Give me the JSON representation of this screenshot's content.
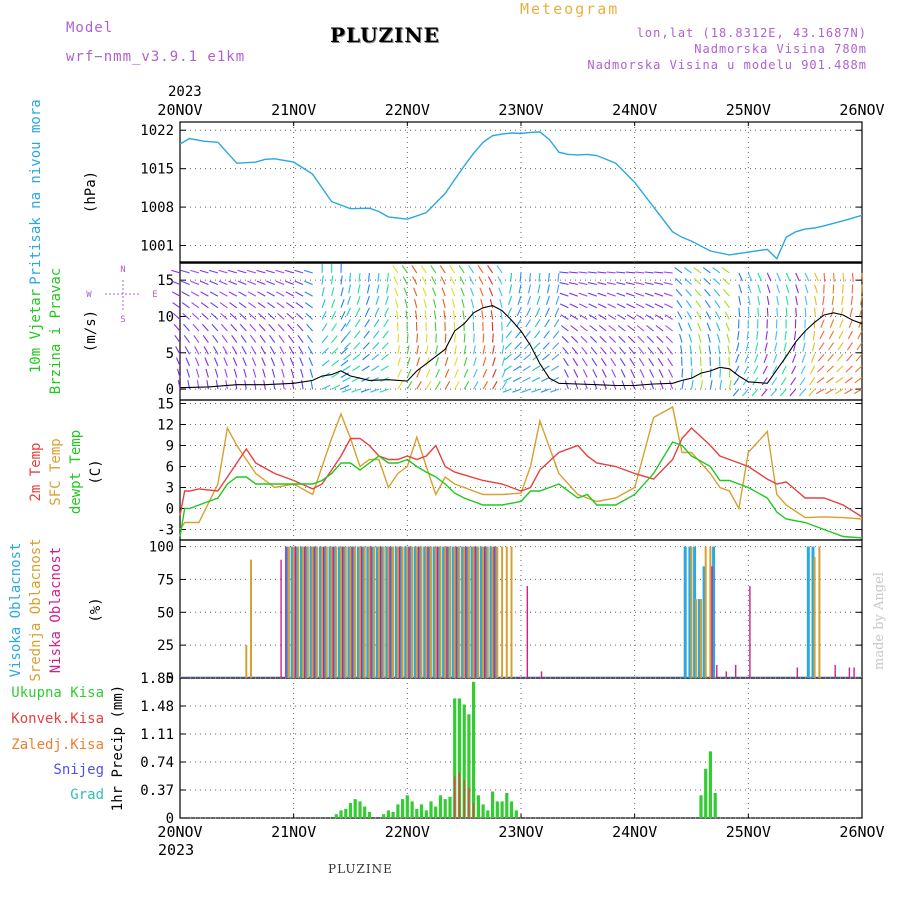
{
  "header": {
    "model_label": "Model",
    "model_name": "wrf−nmm_v3.9.1  e1km",
    "station": "PLUZINE",
    "meteogram_label": "Meteogram",
    "lonlat": "lon,lat (18.8312E, 43.1687N)",
    "altitude": "Nadmorska Visina 780m",
    "model_altitude": "Nadmorska Visina u modelu 901.488m"
  },
  "footer": {
    "station": "PLUZINE",
    "credit": "made by Angel"
  },
  "colors": {
    "pressure": "#2aa8e0",
    "temp2m": "#e84040",
    "sfc": "#d8a030",
    "dew": "#20c820",
    "high_cloud": "#2aa8e0",
    "mid_cloud": "#d8a030",
    "low_cloud": "#d02090",
    "precip": "#33cc33",
    "label_purple": "#b060d0"
  },
  "chart_data": [
    {
      "type": "line",
      "panel": "pressure",
      "ylabel_left": "Pritisak na nivou mora",
      "ylabel_unit": "(hPa)",
      "x_ticks": [
        "20NOV",
        "21NOV",
        "22NOV",
        "23NOV",
        "24NOV",
        "25NOV",
        "26NOV"
      ],
      "x_year": "2023",
      "xlim": [
        0,
        144
      ],
      "yticks": [
        1001,
        1008,
        1015,
        1022
      ],
      "ylim": [
        998,
        1023.5
      ],
      "series": [
        {
          "x": [
            0,
            2,
            5,
            8,
            12,
            16,
            18,
            20,
            24,
            28,
            32,
            36,
            40,
            42,
            44,
            46,
            48,
            52,
            56,
            58,
            60,
            62,
            64,
            66,
            68,
            70,
            72,
            74,
            76,
            78,
            80,
            82,
            84,
            86,
            88,
            92,
            96,
            100,
            104,
            106,
            108,
            112,
            116,
            120,
            124,
            126,
            128,
            130,
            132,
            134,
            136,
            140,
            144
          ],
          "values": [
            1019.5,
            1020.5,
            1020,
            1019.8,
            1016,
            1016.2,
            1016.7,
            1016.8,
            1016.2,
            1014,
            1009,
            1007.7,
            1007.8,
            1007.2,
            1006.2,
            1006,
            1005.8,
            1007,
            1010.5,
            1013,
            1015.5,
            1017.8,
            1019.8,
            1021,
            1021.3,
            1021.5,
            1021.4,
            1021.6,
            1021.7,
            1020.3,
            1018,
            1017.6,
            1017.5,
            1017.6,
            1017.4,
            1016,
            1012.5,
            1008,
            1003.5,
            1002.5,
            1001.8,
            1000,
            999.3,
            999.8,
            1000.3,
            998.6,
            1002.5,
            1003.5,
            1004,
            1004.2,
            1004.6,
            1005.5,
            1006.5
          ]
        }
      ]
    },
    {
      "type": "line",
      "panel": "wind",
      "ylabel_left_1": "10m Vjetar",
      "ylabel_left_2": "Brzina i Pravac",
      "ylabel_unit": "(m/s)",
      "compass_labels": [
        "N",
        "W",
        "E",
        "S"
      ],
      "yticks": [
        0,
        5,
        10,
        15
      ],
      "ylim": [
        -1.5,
        17.5
      ],
      "series": [
        {
          "name": "",
          "x": [
            0,
            6,
            12,
            18,
            24,
            28,
            30,
            32,
            34,
            36,
            38,
            40,
            44,
            48,
            50,
            52,
            54,
            56,
            58,
            60,
            62,
            64,
            66,
            68,
            70,
            72,
            74,
            76,
            78,
            80,
            84,
            88,
            92,
            96,
            100,
            104,
            106,
            108,
            110,
            112,
            114,
            116,
            118,
            120,
            124,
            128,
            130,
            132,
            134,
            136,
            138,
            140,
            142,
            144
          ],
          "values": [
            0.2,
            0.3,
            0.6,
            0.6,
            0.8,
            1.2,
            1.8,
            2,
            2.5,
            1.8,
            1.5,
            1.2,
            1.3,
            1.1,
            2.5,
            3.5,
            4.5,
            5.5,
            8,
            9,
            10.5,
            11.2,
            11.5,
            10.8,
            9.5,
            8,
            6,
            3.5,
            1.5,
            0.8,
            0.7,
            0.6,
            0.5,
            0.5,
            0.7,
            0.8,
            1.2,
            1.5,
            2.2,
            2.5,
            3,
            2.8,
            1.8,
            1,
            0.8,
            4.5,
            6.5,
            8,
            9.2,
            10.2,
            10.5,
            10.2,
            9.5,
            9
          ]
        }
      ]
    },
    {
      "type": "line",
      "panel": "temperature",
      "ylabel_left_1": "2m Temp",
      "ylabel_left_2": "SFC Temp",
      "ylabel_left_3": "dewpt Temp",
      "ylabel_unit": "(C)",
      "yticks": [
        -3,
        0,
        3,
        6,
        9,
        12,
        15
      ],
      "ylim": [
        -4.5,
        15.5
      ],
      "series": [
        {
          "name": "2m Temp",
          "x": [
            0,
            1,
            2,
            4,
            8,
            10,
            12,
            14,
            16,
            20,
            24,
            28,
            30,
            32,
            34,
            36,
            38,
            40,
            42,
            44,
            46,
            48,
            50,
            52,
            54,
            56,
            58,
            60,
            64,
            68,
            72,
            74,
            76,
            80,
            84,
            86,
            88,
            92,
            96,
            100,
            104,
            106,
            108,
            112,
            114,
            116,
            118,
            120,
            124,
            126,
            128,
            132,
            136,
            140,
            144
          ],
          "values": [
            -1,
            2.5,
            2.5,
            2.8,
            2.5,
            4.5,
            6.5,
            8.5,
            6.5,
            5,
            4,
            2.8,
            3.5,
            5.5,
            7.5,
            10,
            10,
            9,
            7.5,
            7,
            7,
            7.5,
            7,
            7.5,
            9,
            6,
            5.2,
            4.8,
            4,
            3.5,
            2.5,
            3,
            5.5,
            8,
            9,
            7.5,
            6.5,
            6,
            5,
            4.2,
            7,
            10,
            11.5,
            9,
            7.5,
            7,
            6.5,
            6,
            4.2,
            3.5,
            3.8,
            1.5,
            1.5,
            0.5,
            -1.2
          ]
        },
        {
          "name": "SFC Temp",
          "x": [
            0,
            1,
            2,
            4,
            8,
            10,
            12,
            14,
            16,
            20,
            24,
            28,
            30,
            32,
            34,
            36,
            38,
            40,
            42,
            44,
            46,
            48,
            50,
            52,
            54,
            56,
            58,
            60,
            64,
            68,
            72,
            74,
            76,
            80,
            84,
            86,
            88,
            92,
            96,
            100,
            104,
            106,
            108,
            112,
            114,
            116,
            118,
            120,
            124,
            126,
            128,
            132,
            136,
            140,
            144
          ],
          "values": [
            -3,
            -2,
            -2,
            -2,
            3.5,
            11.5,
            9,
            7,
            5,
            3,
            3.5,
            2,
            6,
            10,
            13.5,
            10,
            6,
            7,
            7,
            3,
            5,
            6,
            10.2,
            6,
            2,
            4.5,
            3.5,
            3,
            2,
            2,
            2.2,
            6,
            12.5,
            5,
            2,
            1.5,
            1,
            1.5,
            3,
            13,
            14.5,
            8,
            8,
            5,
            3,
            2.5,
            0,
            8,
            11,
            2,
            0.5,
            -1.3,
            -1.2,
            -1.3,
            -1.5
          ]
        },
        {
          "name": "dewpt Temp",
          "x": [
            0,
            1,
            2,
            4,
            8,
            10,
            12,
            14,
            16,
            20,
            24,
            28,
            30,
            32,
            34,
            36,
            38,
            40,
            42,
            44,
            46,
            48,
            50,
            52,
            54,
            56,
            58,
            60,
            64,
            68,
            72,
            74,
            76,
            80,
            84,
            86,
            88,
            92,
            96,
            100,
            104,
            106,
            108,
            112,
            114,
            116,
            118,
            120,
            124,
            126,
            128,
            132,
            136,
            140,
            144
          ],
          "values": [
            -4,
            0,
            0,
            0.5,
            1.5,
            3.5,
            4.5,
            4.5,
            3.5,
            3.5,
            3.5,
            3.5,
            4,
            5,
            6.5,
            6.5,
            5.5,
            6.5,
            7.5,
            6.5,
            6.5,
            7,
            6,
            5.2,
            4.5,
            3.5,
            2.2,
            1.5,
            0.5,
            0.5,
            1,
            2.5,
            2.5,
            3.5,
            1.5,
            2,
            0.5,
            0.5,
            2,
            5,
            9.5,
            9,
            7.5,
            6,
            4,
            4,
            3.5,
            3,
            1.5,
            -0.5,
            -1.5,
            -2,
            -3,
            -4,
            -4.2
          ]
        }
      ]
    },
    {
      "type": "bar",
      "panel": "clouds",
      "ylabel_left_1": "Visoka Oblacnost",
      "ylabel_left_2": "Srednja Oblacnost",
      "ylabel_left_3": "Niska Oblacnost",
      "ylabel_unit": "(%)",
      "yticks": [
        0,
        25,
        50,
        75,
        100
      ],
      "ylim": [
        0,
        105
      ],
      "series": [
        {
          "name": "Visoka Oblacnost",
          "x": [
            23,
            24,
            25,
            26,
            27,
            28,
            29,
            30,
            31,
            32,
            33,
            34,
            35,
            36,
            37,
            38,
            39,
            40,
            41,
            42,
            43,
            44,
            45,
            46,
            47,
            48,
            49,
            50,
            51,
            52,
            53,
            54,
            55,
            56,
            57,
            58,
            59,
            60,
            61,
            62,
            63,
            64,
            65,
            66,
            67,
            107,
            108,
            109,
            110,
            111,
            113,
            133,
            134
          ],
          "values": [
            100,
            100,
            100,
            100,
            100,
            100,
            100,
            100,
            100,
            100,
            100,
            100,
            100,
            100,
            100,
            100,
            100,
            100,
            100,
            100,
            100,
            100,
            100,
            100,
            100,
            100,
            100,
            100,
            100,
            100,
            100,
            100,
            100,
            100,
            100,
            100,
            100,
            100,
            100,
            100,
            100,
            100,
            100,
            100,
            100,
            100,
            100,
            100,
            60,
            85,
            100,
            100,
            100
          ]
        },
        {
          "name": "Srednja Oblacnost",
          "x": [
            14,
            15,
            23,
            24,
            25,
            26,
            27,
            28,
            29,
            30,
            31,
            32,
            33,
            34,
            35,
            36,
            37,
            38,
            39,
            40,
            41,
            42,
            43,
            44,
            45,
            46,
            47,
            48,
            49,
            50,
            51,
            52,
            53,
            54,
            55,
            56,
            57,
            58,
            59,
            60,
            61,
            62,
            63,
            64,
            65,
            66,
            67,
            68,
            69,
            70,
            108,
            109,
            110,
            111,
            112,
            134,
            135
          ],
          "values": [
            25,
            90,
            100,
            100,
            100,
            100,
            100,
            100,
            100,
            100,
            100,
            100,
            100,
            100,
            100,
            100,
            100,
            100,
            100,
            100,
            100,
            100,
            100,
            100,
            100,
            100,
            100,
            100,
            100,
            100,
            100,
            100,
            100,
            100,
            100,
            100,
            100,
            100,
            100,
            100,
            100,
            100,
            100,
            100,
            100,
            100,
            100,
            100,
            100,
            100,
            100,
            60,
            60,
            100,
            100,
            92,
            100
          ]
        },
        {
          "name": "Niska Oblacnost",
          "x": [
            21,
            22,
            24,
            26,
            28,
            30,
            32,
            34,
            36,
            38,
            40,
            42,
            44,
            46,
            48,
            50,
            52,
            54,
            56,
            58,
            60,
            62,
            64,
            66,
            73,
            76,
            112,
            113,
            115,
            117,
            120,
            130,
            138,
            141,
            142
          ],
          "values": [
            90,
            100,
            100,
            100,
            100,
            100,
            100,
            100,
            100,
            100,
            100,
            100,
            100,
            100,
            100,
            100,
            100,
            100,
            100,
            100,
            100,
            100,
            100,
            100,
            70,
            5,
            85,
            10,
            5,
            10,
            70,
            8,
            10,
            8,
            8
          ]
        }
      ]
    },
    {
      "type": "bar",
      "panel": "precip",
      "ylabel_left_1": "Ukupna Kisa",
      "ylabel_left_2": "Konvek.Kisa",
      "ylabel_left_3": "Zaledj.Kisa",
      "ylabel_left_4": "Snijeg",
      "ylabel_left_5": "Grad",
      "ylabel_unit": "1hr Precip (mm)",
      "x_ticks": [
        "20NOV",
        "21NOV",
        "22NOV",
        "23NOV",
        "24NOV",
        "25NOV",
        "26NOV"
      ],
      "x_year": "2023",
      "yticks": [
        0,
        0.37,
        0.74,
        1.11,
        1.48,
        1.85
      ],
      "ylim": [
        0,
        1.85
      ],
      "series": [
        {
          "name": "Ukupna Kisa",
          "x": [
            33,
            34,
            35,
            36,
            37,
            38,
            39,
            40,
            43,
            44,
            45,
            46,
            47,
            48,
            49,
            50,
            51,
            52,
            53,
            54,
            55,
            56,
            57,
            58,
            59,
            60,
            61,
            62,
            63,
            64,
            65,
            66,
            67,
            68,
            69,
            70,
            71,
            110,
            111,
            112,
            113
          ],
          "values": [
            0.05,
            0.1,
            0.12,
            0.2,
            0.25,
            0.22,
            0.15,
            0.08,
            0.05,
            0.1,
            0.08,
            0.18,
            0.25,
            0.3,
            0.22,
            0.12,
            0.18,
            0.1,
            0.22,
            0.15,
            0.3,
            0.25,
            0.28,
            1.58,
            1.58,
            1.5,
            1.37,
            1.8,
            0.3,
            0.18,
            0.1,
            0.35,
            0.22,
            0.22,
            0.33,
            0.22,
            0.1,
            0.3,
            0.65,
            0.88,
            0.33
          ]
        },
        {
          "name": "Konvek.Kisa",
          "x": [
            58,
            59,
            60,
            61,
            62
          ],
          "values": [
            0.55,
            0.6,
            0.5,
            0.4,
            0.2
          ]
        }
      ]
    }
  ]
}
